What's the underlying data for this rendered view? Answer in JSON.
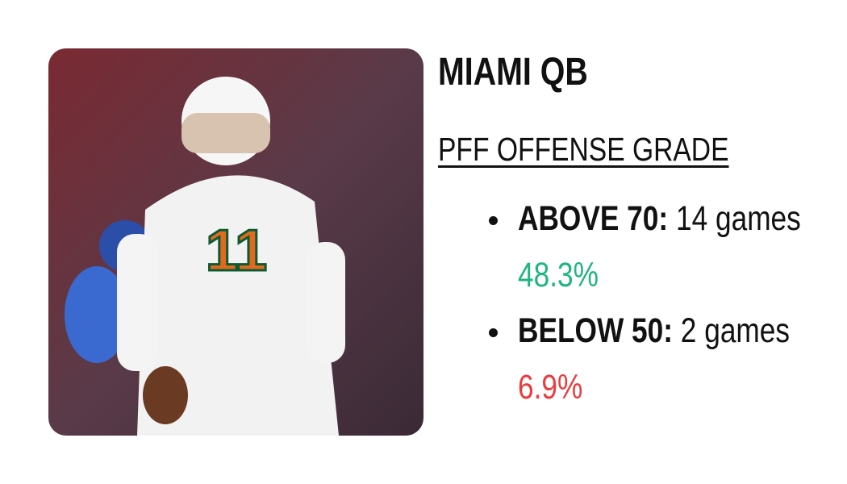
{
  "header": {
    "title": "MIAMI QB"
  },
  "section": {
    "heading": "PFF OFFENSE GRADE"
  },
  "items": [
    {
      "label": "ABOVE 70:",
      "detail": "14 games",
      "percent": "48.3%"
    },
    {
      "label": "BELOW 50:",
      "detail": "2 games",
      "percent": "6.9%"
    }
  ]
}
